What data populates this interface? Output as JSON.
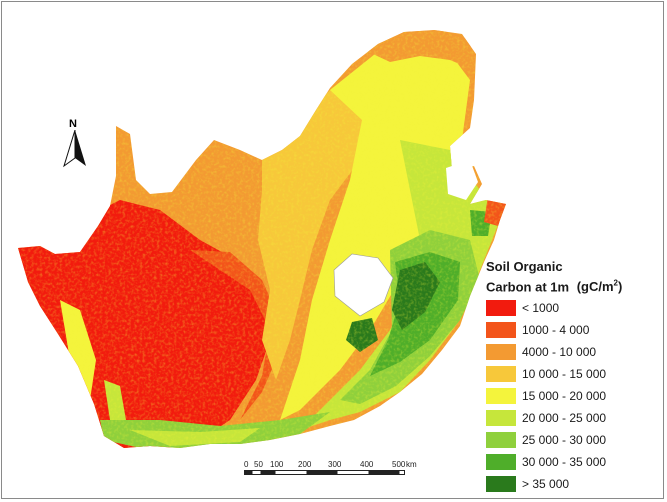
{
  "legend": {
    "title_line1": "Soil Organic",
    "title_line2": "Carbon at 1m",
    "unit_prefix": "(gC/m",
    "unit_exp": "2",
    "unit_suffix": ")",
    "classes": [
      {
        "label": "< 1000",
        "color": "#f21b0e"
      },
      {
        "label": "1000 - 4 000",
        "color": "#f3541a"
      },
      {
        "label": "4000 - 10 000",
        "color": "#f39a32"
      },
      {
        "label": "10 000 - 15 000",
        "color": "#f7c83a"
      },
      {
        "label": "15 000 - 20 000",
        "color": "#f4f43c"
      },
      {
        "label": "20 000 - 25 000",
        "color": "#c6e63b"
      },
      {
        "label": "25 000 - 30 000",
        "color": "#8fd03c"
      },
      {
        "label": "30 000 - 35 000",
        "color": "#4fae2a"
      },
      {
        "label": "> 35 000",
        "color": "#2a7a1c"
      }
    ]
  },
  "north_arrow": {
    "label": "N"
  },
  "scale_bar": {
    "labels": [
      "0",
      "50",
      "100",
      "200",
      "300",
      "400",
      "500"
    ],
    "unit": "km"
  }
}
